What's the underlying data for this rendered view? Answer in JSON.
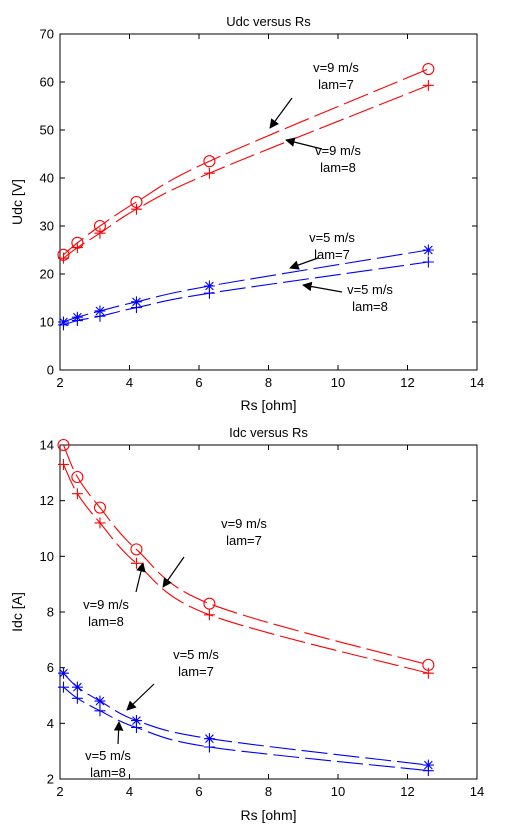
{
  "chart_data": [
    {
      "type": "line",
      "title": "Udc versus Rs",
      "xlabel": "Rs [ohm]",
      "ylabel": "Udc [V]",
      "xlim": [
        2,
        14
      ],
      "ylim": [
        0,
        70
      ],
      "xticks": [
        2,
        4,
        6,
        8,
        10,
        12,
        14
      ],
      "yticks": [
        0,
        10,
        20,
        30,
        40,
        50,
        60,
        70
      ],
      "grid": false,
      "x": [
        2.1,
        2.5,
        3.15,
        4.2,
        6.3,
        12.6
      ],
      "series": [
        {
          "color": "#ff0000",
          "marker": "circle",
          "values": [
            24,
            26.5,
            30,
            35,
            43.5,
            62.7
          ]
        },
        {
          "color": "#ff0000",
          "marker": "plus",
          "values": [
            23.3,
            25.5,
            28.5,
            33.5,
            41,
            59.3
          ]
        },
        {
          "color": "#0000ff",
          "marker": "star",
          "values": [
            10,
            11,
            12.3,
            14.2,
            17.5,
            25
          ]
        },
        {
          "color": "#0000ff",
          "marker": "plus",
          "values": [
            9.4,
            10.3,
            11.2,
            13,
            16,
            22.5
          ]
        }
      ],
      "annotations": [
        {
          "lines": [
            "v=9 m/s",
            "lam=7"
          ]
        },
        {
          "lines": [
            "v=9 m/s",
            "lam=8"
          ]
        },
        {
          "lines": [
            "v=5 m/s",
            "lam=7"
          ]
        },
        {
          "lines": [
            "v=5 m/s",
            "lam=8"
          ]
        }
      ]
    },
    {
      "type": "line",
      "title": "Idc versus Rs",
      "xlabel": "Rs [ohm]",
      "ylabel": "Idc [A]",
      "xlim": [
        2,
        14
      ],
      "ylim": [
        2,
        14
      ],
      "xticks": [
        2,
        4,
        6,
        8,
        10,
        12,
        14
      ],
      "yticks": [
        2,
        4,
        6,
        8,
        10,
        12,
        14
      ],
      "grid": false,
      "x": [
        2.1,
        2.5,
        3.15,
        4.2,
        6.3,
        12.6
      ],
      "series": [
        {
          "color": "#ff0000",
          "marker": "circle",
          "values": [
            14,
            12.85,
            11.75,
            10.25,
            8.3,
            6.1
          ]
        },
        {
          "color": "#ff0000",
          "marker": "plus",
          "values": [
            13.3,
            12.25,
            11.2,
            9.75,
            7.9,
            5.8
          ]
        },
        {
          "color": "#0000ff",
          "marker": "star",
          "values": [
            5.8,
            5.3,
            4.8,
            4.1,
            3.45,
            2.5
          ]
        },
        {
          "color": "#0000ff",
          "marker": "plus",
          "values": [
            5.3,
            4.9,
            4.45,
            3.85,
            3.15,
            2.3
          ]
        }
      ],
      "annotations": [
        {
          "lines": [
            "v=9 m/s",
            "lam=7"
          ]
        },
        {
          "lines": [
            "v=9 m/s",
            "lam=8"
          ]
        },
        {
          "lines": [
            "v=5 m/s",
            "lam=7"
          ]
        },
        {
          "lines": [
            "v=5 m/s",
            "lam=8"
          ]
        }
      ]
    }
  ]
}
